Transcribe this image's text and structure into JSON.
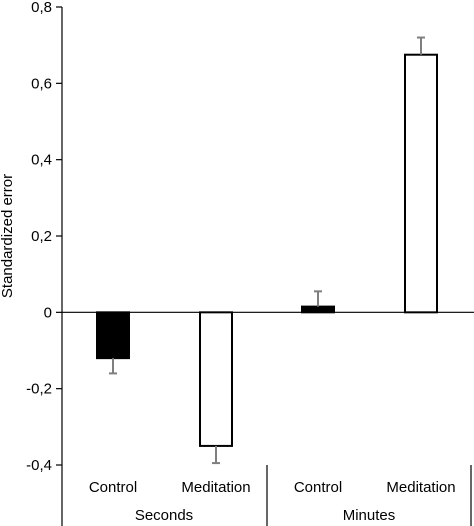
{
  "chart_data": {
    "type": "bar",
    "ylabel": "Standardized error",
    "ylim": [
      -0.4,
      0.8
    ],
    "yticks": [
      -0.4,
      -0.2,
      0,
      0.2,
      0.4,
      0.6,
      0.8
    ],
    "ytick_labels": [
      "-0,4",
      "-0,2",
      "0",
      "0,2",
      "0,4",
      "0,6",
      "0,8"
    ],
    "groups": [
      "Seconds",
      "Minutes"
    ],
    "categories": [
      "Control",
      "Meditation",
      "Control",
      "Meditation"
    ],
    "category_group": [
      0,
      0,
      1,
      1
    ],
    "values": [
      -0.12,
      -0.35,
      0.015,
      0.675
    ],
    "errors": [
      0.04,
      0.045,
      0.04,
      0.045
    ],
    "bar_fill": [
      "#000000",
      "#ffffff",
      "#000000",
      "#ffffff"
    ],
    "grid": false,
    "legend": false
  }
}
